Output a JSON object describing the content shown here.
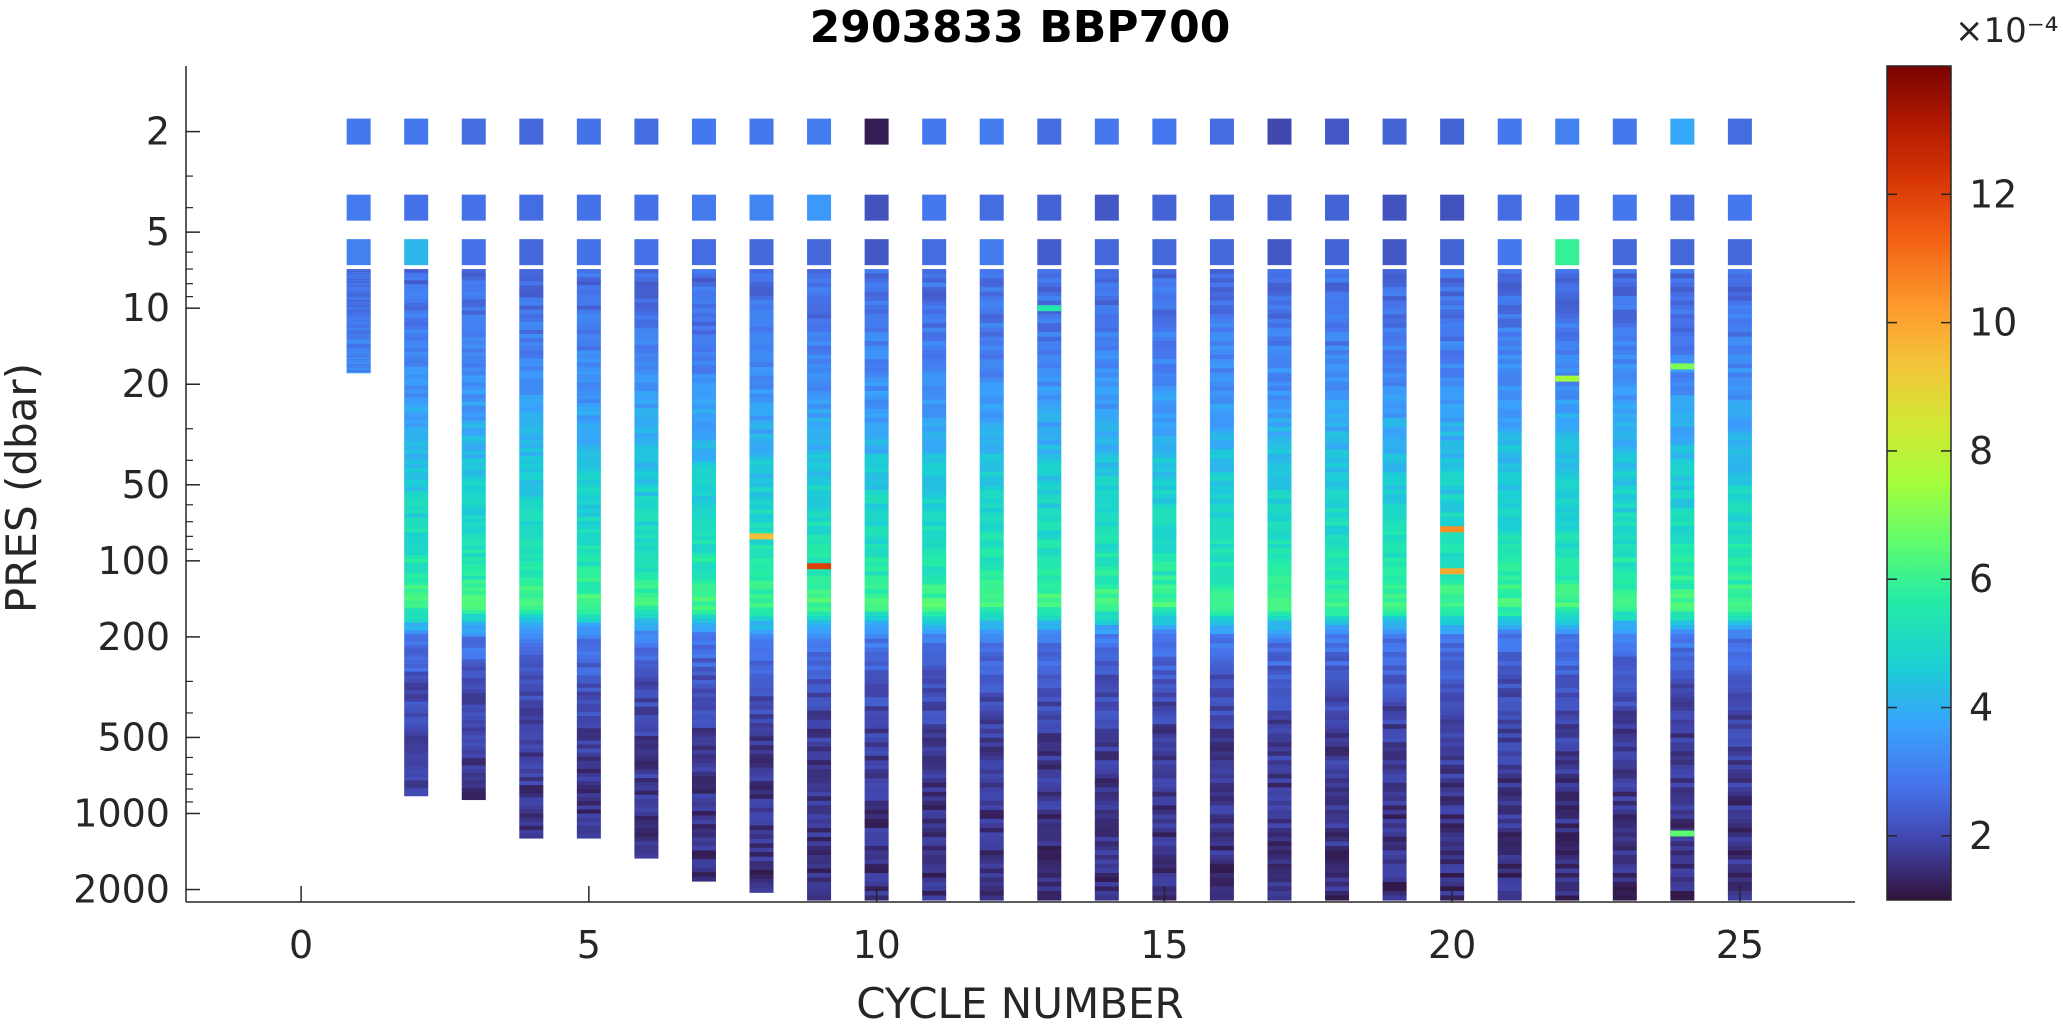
{
  "chart_data": {
    "type": "heatmap",
    "title": "2903833 BBP700",
    "xlabel": "CYCLE NUMBER",
    "ylabel": "PRES (dbar)",
    "xlim": [
      -2,
      27
    ],
    "ylim": [
      1.1,
      2200
    ],
    "y_scale": "log",
    "y_reversed": true,
    "x_ticks": [
      0,
      5,
      10,
      15,
      20,
      25
    ],
    "y_ticks": [
      2,
      5,
      10,
      20,
      50,
      100,
      200,
      500,
      1000,
      2000
    ],
    "colormap": "turbo",
    "colorbar": {
      "range": [
        1,
        14
      ],
      "ticks": [
        2,
        4,
        6,
        8,
        10,
        12
      ],
      "exponent_label": "×10⁻⁴"
    },
    "cycles": [
      {
        "cycle": 1,
        "max_pres": 18,
        "surface": [
          2.9,
          3.0,
          3.1
        ]
      },
      {
        "cycle": 2,
        "max_pres": 850,
        "surface": [
          2.9,
          2.8,
          4.2
        ]
      },
      {
        "cycle": 3,
        "max_pres": 880,
        "surface": [
          2.7,
          2.8,
          2.8
        ]
      },
      {
        "cycle": 4,
        "max_pres": 1250,
        "surface": [
          2.6,
          2.7,
          2.6
        ]
      },
      {
        "cycle": 5,
        "max_pres": 1250,
        "surface": [
          2.8,
          2.8,
          2.8
        ]
      },
      {
        "cycle": 6,
        "max_pres": 1500,
        "surface": [
          2.7,
          2.8,
          2.8
        ]
      },
      {
        "cycle": 7,
        "max_pres": 1850,
        "surface": [
          2.9,
          3.0,
          2.7
        ]
      },
      {
        "cycle": 8,
        "max_pres": 2050,
        "surface": [
          2.9,
          3.2,
          2.6
        ]
      },
      {
        "cycle": 9,
        "max_pres": 2200,
        "surface": [
          3.0,
          3.6,
          2.6
        ]
      },
      {
        "cycle": 10,
        "max_pres": 2200,
        "surface": [
          1.2,
          2.2,
          2.3
        ]
      },
      {
        "cycle": 11,
        "max_pres": 2200,
        "surface": [
          2.9,
          2.9,
          2.7
        ]
      },
      {
        "cycle": 12,
        "max_pres": 2200,
        "surface": [
          3.0,
          2.7,
          3.0
        ]
      },
      {
        "cycle": 13,
        "max_pres": 2200,
        "surface": [
          2.7,
          2.5,
          2.4
        ]
      },
      {
        "cycle": 14,
        "max_pres": 2200,
        "surface": [
          2.9,
          2.3,
          2.6
        ]
      },
      {
        "cycle": 15,
        "max_pres": 2200,
        "surface": [
          2.9,
          2.5,
          2.6
        ]
      },
      {
        "cycle": 16,
        "max_pres": 2200,
        "surface": [
          2.7,
          2.6,
          2.6
        ]
      },
      {
        "cycle": 17,
        "max_pres": 2200,
        "surface": [
          2.0,
          2.5,
          2.3
        ]
      },
      {
        "cycle": 18,
        "max_pres": 2200,
        "surface": [
          2.3,
          2.5,
          2.5
        ]
      },
      {
        "cycle": 19,
        "max_pres": 2200,
        "surface": [
          2.5,
          2.2,
          2.3
        ]
      },
      {
        "cycle": 20,
        "max_pres": 2200,
        "surface": [
          2.5,
          2.2,
          2.5
        ]
      },
      {
        "cycle": 21,
        "max_pres": 2200,
        "surface": [
          2.9,
          2.7,
          2.9
        ]
      },
      {
        "cycle": 22,
        "max_pres": 2200,
        "surface": [
          3.1,
          2.8,
          5.9
        ]
      },
      {
        "cycle": 23,
        "max_pres": 2200,
        "surface": [
          2.9,
          2.9,
          2.6
        ]
      },
      {
        "cycle": 24,
        "max_pres": 2200,
        "surface": [
          3.9,
          2.7,
          2.6
        ]
      },
      {
        "cycle": 25,
        "max_pres": 2200,
        "surface": [
          2.7,
          2.9,
          2.6
        ]
      }
    ],
    "surface_levels_dbar": [
      2,
      4,
      6
    ],
    "profile": {
      "description": "values in units of 1e-4 along depth",
      "levels_dbar": [
        7,
        10,
        20,
        40,
        70,
        110,
        150,
        200,
        300,
        500,
        1000,
        2000
      ],
      "values": [
        2.7,
        2.8,
        3.4,
        4.4,
        5.0,
        5.5,
        6.2,
        3.0,
        2.2,
        1.8,
        1.6,
        1.5
      ]
    },
    "annotations": [
      {
        "cycle": 9,
        "pres": 105,
        "value": 12.0
      },
      {
        "cycle": 20,
        "pres": 75,
        "value": 10.5
      },
      {
        "cycle": 20,
        "pres": 110,
        "value": 10.0
      },
      {
        "cycle": 8,
        "pres": 80,
        "value": 9.5
      },
      {
        "cycle": 22,
        "pres": 19,
        "value": 7.5
      },
      {
        "cycle": 24,
        "pres": 17,
        "value": 7.0
      },
      {
        "cycle": 13,
        "pres": 10,
        "value": 5.5
      },
      {
        "cycle": 24,
        "pres": 1200,
        "value": 6.5
      }
    ]
  }
}
